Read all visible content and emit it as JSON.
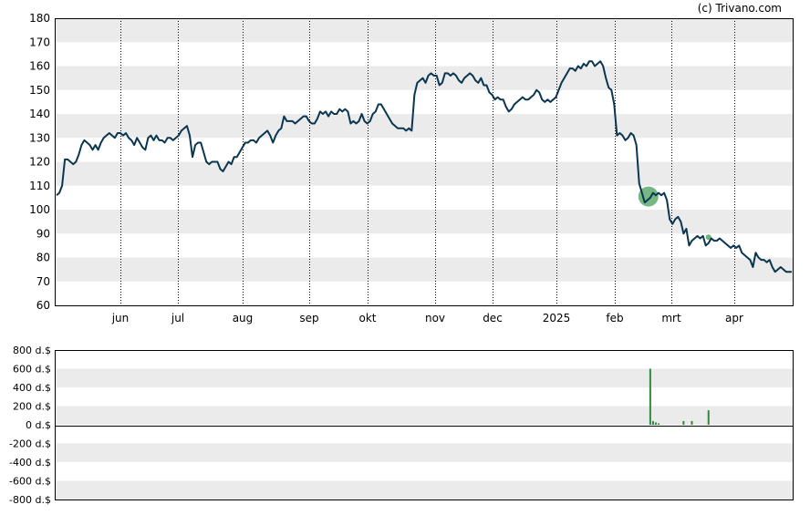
{
  "credit": "(c) Trivano.com",
  "colors": {
    "price_line": "#0b3650",
    "band": "#ebebeb",
    "volume_bar": "#2e8b3e",
    "marker_fill": "#4a9f5a",
    "frame": "#000000"
  },
  "chart_data": [
    {
      "type": "line",
      "title": "",
      "xlabel": "",
      "ylabel": "",
      "ylim": [
        60,
        180
      ],
      "yticks": [
        "180",
        "170",
        "160",
        "150",
        "140",
        "130",
        "120",
        "110",
        "100",
        "90",
        "80",
        "70",
        "60"
      ],
      "month_labels": [
        "jun",
        "jul",
        "aug",
        "sep",
        "okt",
        "nov",
        "dec",
        "2025",
        "feb",
        "mrt",
        "apr"
      ],
      "grid": "alternating horizontal bands, dotted vertical lines at month starts",
      "series": [
        {
          "values": [
            106,
            107,
            110,
            121,
            121,
            120,
            119,
            120,
            123,
            127,
            129,
            128,
            127,
            125,
            127,
            125,
            128,
            130,
            131,
            132,
            131,
            130,
            132,
            132,
            131,
            132,
            130,
            129,
            127,
            130,
            128,
            126,
            125,
            130,
            131,
            129,
            131,
            129,
            129,
            128,
            130,
            130,
            129,
            130,
            131,
            133,
            134,
            135,
            131,
            122,
            127,
            128,
            128,
            124,
            120,
            119,
            120,
            120,
            120,
            117,
            116,
            118,
            120,
            119,
            122,
            122,
            124,
            126,
            128,
            128,
            129,
            129,
            128,
            130,
            131,
            132,
            133,
            131,
            128,
            131,
            133,
            134,
            139,
            137,
            137,
            137,
            136,
            137,
            138,
            139,
            139,
            137,
            136,
            136,
            138,
            141,
            140,
            141,
            139,
            141,
            140,
            140,
            142,
            141,
            142,
            141,
            136,
            137,
            136,
            137,
            140,
            137,
            136,
            137,
            140,
            141,
            144,
            144,
            142,
            140,
            138,
            136,
            135,
            134,
            134,
            134,
            133,
            134,
            133,
            148,
            153,
            154,
            155,
            153,
            156,
            157,
            156,
            156,
            152,
            153,
            157,
            157,
            156,
            157,
            156,
            154,
            153,
            155,
            156,
            157,
            156,
            154,
            153,
            155,
            152,
            152,
            149,
            148,
            146,
            147,
            146,
            146,
            143,
            141,
            142,
            144,
            145,
            146,
            147,
            146,
            146,
            147,
            148,
            150,
            149,
            146,
            145,
            146,
            145,
            146,
            147,
            150,
            153,
            155,
            157,
            159,
            159,
            158,
            160,
            159,
            161,
            160,
            162,
            162,
            160,
            161,
            162,
            160,
            155,
            151,
            150,
            144,
            131,
            132,
            131,
            129,
            130,
            132,
            131,
            127,
            111,
            107,
            103,
            104,
            105,
            107,
            106,
            107,
            106,
            107,
            104,
            96,
            94,
            96,
            97,
            95,
            90,
            92,
            85,
            87,
            88,
            89,
            88,
            89,
            85,
            86,
            88,
            87,
            87,
            88,
            87,
            86,
            85,
            84,
            85,
            84,
            85,
            82,
            81,
            80,
            79,
            76,
            82,
            80,
            79,
            79,
            78,
            79,
            76,
            74,
            75,
            76,
            75,
            74,
            74,
            74
          ]
        }
      ]
    },
    {
      "type": "bar",
      "title": "",
      "xlabel": "",
      "ylabel": "",
      "ylim": [
        -800,
        800
      ],
      "yticks": [
        "800 d.$",
        "600 d.$",
        "400 d.$",
        "200 d.$",
        "0 d.$",
        "-200 d.$",
        "-400 d.$",
        "-600 d.$",
        "-800 d.$"
      ],
      "bars": [
        {
          "index": 214,
          "value": 600
        },
        {
          "index": 215,
          "value": 40
        },
        {
          "index": 216,
          "value": 25
        },
        {
          "index": 217,
          "value": 15
        },
        {
          "index": 226,
          "value": 40
        },
        {
          "index": 229,
          "value": 40
        },
        {
          "index": 235,
          "value": 155
        }
      ]
    }
  ]
}
